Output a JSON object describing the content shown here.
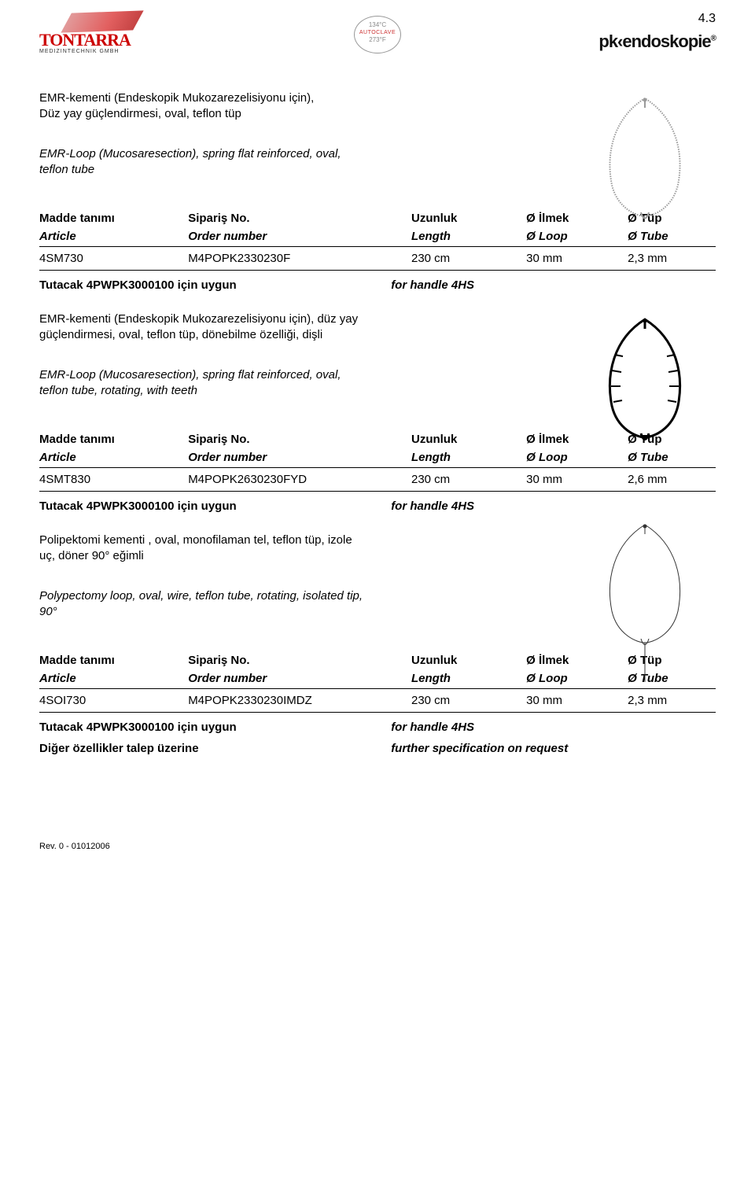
{
  "page_number": "4.3",
  "logo_left": {
    "name": "TONTARRA",
    "sub": "MEDIZINTECHNIK GMBH"
  },
  "autoclave": {
    "top": "134°C",
    "mid": "AUTOCLAVE",
    "bot": "273°F"
  },
  "logo_right": "pk‹endoskopie",
  "logo_right_reg": "®",
  "table_headers": {
    "tr": [
      "Madde tanımı",
      "Sipariş No.",
      "Uzunluk",
      "Ø İlmek",
      "Ø Tüp"
    ],
    "en": [
      "Article",
      "Order number",
      "Length",
      "Ø Loop",
      "Ø Tube"
    ]
  },
  "sections": [
    {
      "desc_tr": "EMR-kementi (Endeskopik Mukozarezelisiyonu için),\nDüz yay güçlendirmesi, oval, teflon tüp",
      "desc_en": "EMR-Loop (Mucosaresection), spring flat reinforced, oval, teflon tube",
      "row": [
        "4SM730",
        "M4POPK2330230F",
        "230 cm",
        "30 mm",
        "2,3 mm"
      ],
      "footer": [
        {
          "left": "Tutacak 4PWPK3000100 için uygun",
          "right": "for handle 4HS"
        }
      ],
      "image": "loop-textured"
    },
    {
      "desc_tr": "EMR-kementi (Endeskopik Mukozarezelisiyonu için), düz yay güçlendirmesi, oval, teflon tüp, dönebilme özelliği, dişli",
      "desc_en": "EMR-Loop (Mucosaresection), spring flat reinforced, oval, teflon tube, rotating, with teeth",
      "row": [
        "4SMT830",
        "M4POPK2630230FYD",
        "230 cm",
        "30 mm",
        "2,6 mm"
      ],
      "footer": [
        {
          "left": "Tutacak 4PWPK3000100 için uygun",
          "right": "for handle 4HS"
        }
      ],
      "image": "loop-teeth"
    },
    {
      "desc_tr": "Polipektomi kementi , oval, monofilaman tel, teflon tüp, izole uç, döner 90° eğimli",
      "desc_en": "Polypectomy loop, oval, wire, teflon tube, rotating, isolated tip, 90°",
      "row": [
        "4SOI730",
        "M4POPK2330230IMDZ",
        "230 cm",
        "30 mm",
        "2,3 mm"
      ],
      "footer": [
        {
          "left": "Tutacak 4PWPK3000100 için uygun",
          "right": "for handle 4HS"
        },
        {
          "left": "Diğer özellikler talep üzerine",
          "right": "further specification on request"
        }
      ],
      "image": "loop-wire"
    }
  ],
  "rev": "Rev. 0 - 01012006",
  "svg": {
    "loop-textured": {
      "stroke": "#9a9a9a",
      "stroke_width": 2,
      "fill": "none",
      "teeth": false,
      "tail": false,
      "textured": true
    },
    "loop-teeth": {
      "stroke": "#000000",
      "stroke_width": 3,
      "fill": "none",
      "teeth": true,
      "tail": false,
      "textured": false
    },
    "loop-wire": {
      "stroke": "#333333",
      "stroke_width": 1,
      "fill": "none",
      "teeth": false,
      "tail": true,
      "textured": false
    }
  }
}
